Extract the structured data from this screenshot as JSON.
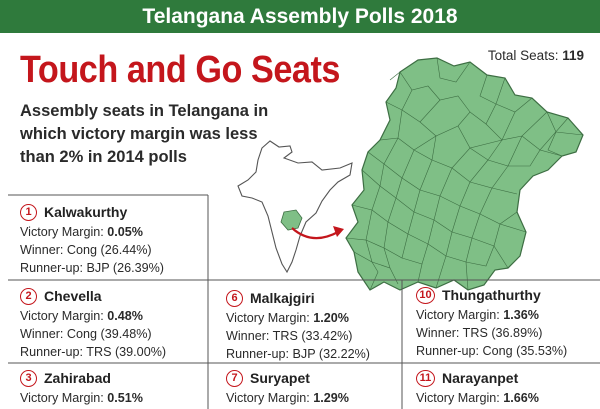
{
  "banner_title": "Telangana Assembly Polls 2018",
  "headline": "Touch and Go Seats",
  "subtitle": "Assembly seats in Telangana in which victory margin was less than 2% in 2014 polls",
  "total_seats": {
    "label": "Total Seats:",
    "value": "119"
  },
  "labels": {
    "margin": "Victory Margin:",
    "winner": "Winner:",
    "runner_up": "Runner-up:"
  },
  "colors": {
    "banner": "#2f7a3c",
    "headline": "#c4161c",
    "map_fill": "#7fbf86",
    "map_stroke": "#3d6e43",
    "india_fill": "#ffffff",
    "arrow": "#c4161c"
  },
  "icons": {
    "map": "telangana-district-map",
    "inset": "india-outline-map",
    "arrow": "curved-arrow"
  },
  "seats": [
    {
      "num": "1",
      "name": "Kalwakurthy",
      "margin": "0.05%",
      "winner": "Cong (26.44%)",
      "runner_up": "BJP (26.39%)"
    },
    {
      "num": "2",
      "name": "Chevella",
      "margin": "0.48%",
      "winner": "Cong (39.48%)",
      "runner_up": "TRS (39.00%)"
    },
    {
      "num": "3",
      "name": "Zahirabad",
      "margin": "0.51%"
    },
    {
      "num": "6",
      "name": "Malkajgiri",
      "margin": "1.20%",
      "winner": "TRS (33.42%)",
      "runner_up": "BJP (32.22%)"
    },
    {
      "num": "7",
      "name": "Suryapet",
      "margin": "1.29%"
    },
    {
      "num": "10",
      "name": "Thungathurthy",
      "margin": "1.36%",
      "winner": "TRS (36.89%)",
      "runner_up": "Cong (35.53%)"
    },
    {
      "num": "11",
      "name": "Narayanpet",
      "margin": "1.66%"
    }
  ]
}
